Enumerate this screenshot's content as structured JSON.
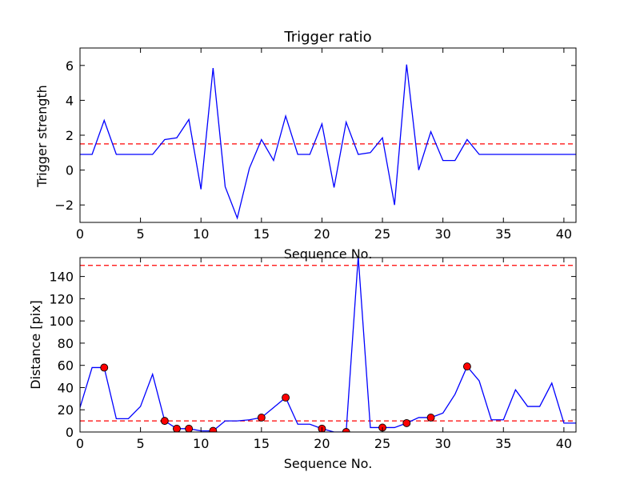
{
  "chart_data": [
    {
      "type": "line",
      "title": "Trigger ratio",
      "xlabel": "Sequence No.",
      "ylabel": "Trigger strength",
      "xlim": [
        0,
        41
      ],
      "ylim": [
        -3,
        7
      ],
      "xticks": [
        0,
        5,
        10,
        15,
        20,
        25,
        30,
        35,
        40
      ],
      "yticks": [
        -2,
        0,
        2,
        4,
        6
      ],
      "ytick_labels": [
        "−2",
        "0",
        "2",
        "4",
        "6"
      ],
      "grid": false,
      "series": [
        {
          "color": "#0000ff",
          "x": [
            0,
            1,
            2,
            3,
            4,
            5,
            6,
            7,
            8,
            9,
            10,
            11,
            12,
            13,
            14,
            15,
            16,
            17,
            18,
            19,
            20,
            21,
            22,
            23,
            24,
            25,
            26,
            27,
            28,
            29,
            30,
            31,
            32,
            33,
            34,
            35,
            36,
            37,
            38,
            39,
            40,
            41
          ],
          "values": [
            0.9,
            0.9,
            2.85,
            0.9,
            0.9,
            0.9,
            0.9,
            1.75,
            1.85,
            2.9,
            -1.1,
            5.85,
            -0.95,
            -2.75,
            0.1,
            1.75,
            0.55,
            3.1,
            0.9,
            0.9,
            2.65,
            -1.0,
            2.75,
            0.9,
            1.0,
            1.85,
            -2.0,
            6.05,
            0.0,
            2.2,
            0.55,
            0.55,
            1.75,
            0.9,
            0.9,
            0.9,
            0.9,
            0.9,
            0.9,
            0.9,
            0.9,
            0.9
          ]
        }
      ],
      "hlines": [
        {
          "y": 1.5,
          "color": "#ff0000",
          "style": "dashed"
        }
      ]
    },
    {
      "type": "line",
      "xlabel": "Sequence No.",
      "ylabel": "Distance [pix]",
      "xlim": [
        0,
        41
      ],
      "ylim": [
        0,
        157
      ],
      "xticks": [
        0,
        5,
        10,
        15,
        20,
        25,
        30,
        35,
        40
      ],
      "yticks": [
        0,
        20,
        40,
        60,
        80,
        100,
        120,
        140
      ],
      "grid": false,
      "series": [
        {
          "color": "#0000ff",
          "x": [
            0,
            1,
            2,
            3,
            4,
            5,
            6,
            7,
            8,
            9,
            10,
            11,
            12,
            13,
            14,
            15,
            16,
            17,
            18,
            19,
            20,
            21,
            22,
            23,
            24,
            25,
            26,
            27,
            28,
            29,
            30,
            31,
            32,
            33,
            34,
            35,
            36,
            37,
            38,
            39,
            40,
            41
          ],
          "values": [
            22,
            58,
            58,
            12,
            12,
            23,
            52,
            10,
            3,
            3,
            1,
            1,
            10,
            10,
            11,
            13,
            22,
            31,
            7,
            7,
            3,
            0,
            0,
            158,
            4,
            4,
            4,
            8,
            13,
            13,
            17,
            34,
            59,
            46,
            11,
            11,
            38,
            23,
            23,
            44,
            8,
            8
          ]
        }
      ],
      "markers": {
        "color": "#ff0000",
        "x": [
          2,
          7,
          8,
          9,
          11,
          15,
          17,
          20,
          22,
          25,
          27,
          29,
          32
        ],
        "values": [
          58,
          10,
          3,
          3,
          1,
          13,
          31,
          3,
          0,
          4,
          8,
          13,
          59
        ]
      },
      "hlines": [
        {
          "y": 150,
          "color": "#ff0000",
          "style": "dashed"
        },
        {
          "y": 10,
          "color": "#ff0000",
          "style": "dashed"
        }
      ]
    }
  ]
}
